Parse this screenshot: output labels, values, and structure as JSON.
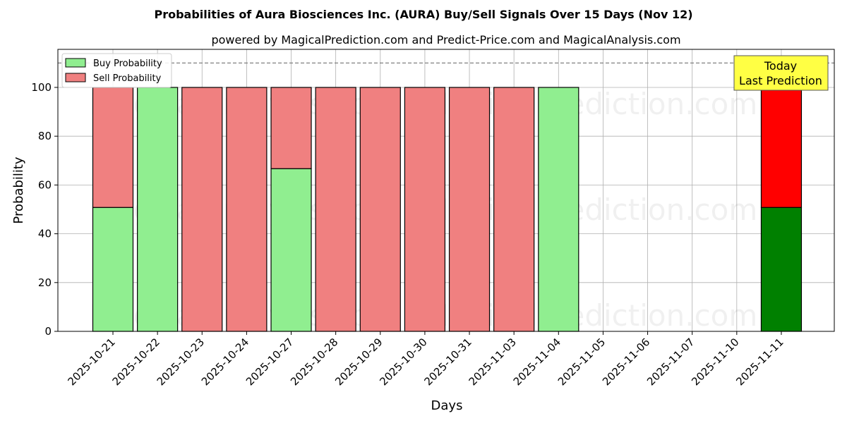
{
  "chart_data": {
    "type": "bar",
    "stacked": true,
    "title": "Probabilities of Aura Biosciences Inc. (AURA) Buy/Sell Signals Over 15 Days (Nov 12)",
    "subtitle": "powered by MagicalPrediction.com and Predict-Price.com and MagicalAnalysis.com",
    "xlabel": "Days",
    "ylabel": "Probability",
    "ylim": [
      0,
      115.6
    ],
    "yticks": [
      0,
      20,
      40,
      60,
      80,
      100
    ],
    "grid": true,
    "legend_position": "top-left",
    "categories": [
      "2025-10-21",
      "2025-10-22",
      "2025-10-23",
      "2025-10-24",
      "2025-10-27",
      "2025-10-28",
      "2025-10-29",
      "2025-10-30",
      "2025-10-31",
      "2025-11-03",
      "2025-11-04",
      "2025-11-05",
      "2025-11-06",
      "2025-11-07",
      "2025-11-10",
      "2025-11-11"
    ],
    "series": [
      {
        "name": "Buy Probability",
        "color": "#90ee90",
        "values": [
          50.8,
          100,
          0,
          0,
          66.7,
          0,
          0,
          0,
          0,
          0,
          100,
          null,
          null,
          null,
          null,
          50.8
        ]
      },
      {
        "name": "Sell Probability",
        "color": "#f08080",
        "values": [
          49.2,
          0,
          100,
          100,
          33.3,
          100,
          100,
          100,
          100,
          100,
          0,
          null,
          null,
          null,
          null,
          49.2
        ]
      }
    ],
    "today_colors": {
      "buy": "#008000",
      "sell": "#ff0000"
    },
    "reference_line": 110,
    "annotation": {
      "line1": "Today",
      "line2": "Last Prediction",
      "bg": "#ffff44"
    },
    "watermarks": [
      "MagicalAnalysis.com",
      "MagicalPrediction.com"
    ]
  }
}
